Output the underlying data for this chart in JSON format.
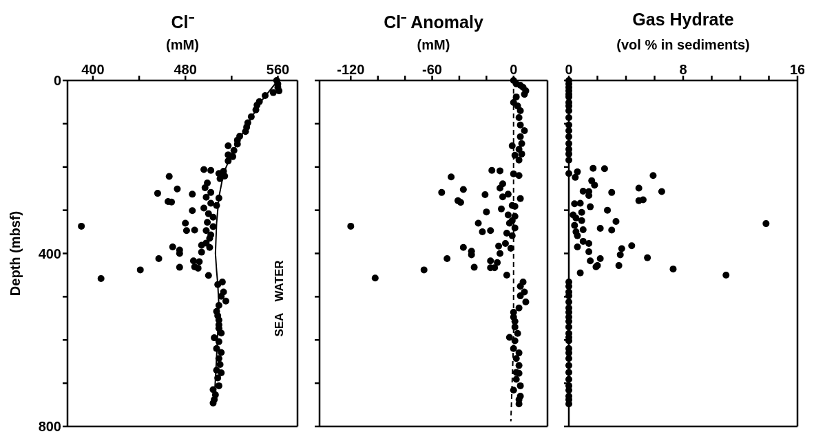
{
  "chart_data": [
    {
      "type": "scatter",
      "title": "Cl⁻",
      "xlabel": "(mM)",
      "ylabel": "Depth (mbsf)",
      "xlim": [
        378,
        577
      ],
      "xticks": [
        400,
        {
          "value": 440,
          "label": null
        },
        480,
        {
          "value": 520,
          "label": null
        },
        560
      ],
      "ylim": [
        800,
        0
      ],
      "yticks": [
        0,
        {
          "value": 100,
          "label": null
        },
        {
          "value": 200,
          "label": null
        },
        {
          "value": 300,
          "label": null
        },
        400,
        {
          "value": 500,
          "label": null
        },
        {
          "value": 600,
          "label": null
        },
        {
          "value": 700,
          "label": null
        },
        800
      ],
      "annotations": [
        "SEA WATER"
      ],
      "series": [
        {
          "color": "#000000",
          "marker": "circle",
          "x": [
            559,
            560,
            560,
            561,
            556,
            549,
            544,
            542,
            541,
            537,
            534,
            533,
            532,
            527,
            525,
            525,
            517,
            522,
            517,
            521,
            517,
            513,
            509,
            514,
            510,
            509,
            496,
            502,
            466,
            499,
            497,
            502,
            498,
            456,
            473,
            486,
            465,
            468,
            502,
            496,
            507,
            486,
            500,
            504,
            499,
            504,
            480,
            481,
            488,
            498,
            502,
            501,
            390,
            494,
            498,
            501,
            469,
            475,
            475,
            494,
            457,
            441,
            407,
            475,
            487,
            492,
            488,
            491,
            500,
            512,
            508,
            513,
            511,
            515,
            509,
            507,
            508,
            509,
            509,
            509,
            511,
            505,
            509,
            507,
            511,
            509,
            510,
            507,
            511,
            508,
            509,
            504,
            506,
            505,
            504
          ],
          "values": [
            0,
            8,
            16,
            24,
            28,
            35,
            49,
            57,
            68,
            84,
            98,
            108,
            118,
            129,
            138,
            147,
            151,
            162,
            172,
            176,
            186,
            210,
            215,
            221,
            227,
            272,
            206,
            208,
            222,
            237,
            248,
            259,
            270,
            261,
            251,
            263,
            280,
            281,
            284,
            295,
            289,
            301,
            308,
            316,
            328,
            338,
            330,
            347,
            346,
            347,
            357,
            365,
            337,
            381,
            376,
            386,
            385,
            392,
            400,
            397,
            412,
            438,
            458,
            432,
            417,
            419,
            431,
            434,
            451,
            466,
            472,
            489,
            499,
            510,
            520,
            534,
            544,
            554,
            565,
            573,
            584,
            595,
            604,
            620,
            629,
            643,
            657,
            670,
            676,
            688,
            706,
            715,
            727,
            738,
            746
          ]
        },
        {
          "type": "line",
          "color": "#000000",
          "marker": "none",
          "line_style": "solid",
          "x": [
            560,
            545,
            532,
            520,
            513,
            509,
            507,
            506,
            507,
            508,
            509,
            507,
            505
          ],
          "values": [
            0,
            50,
            110,
            170,
            215,
            270,
            330,
            400,
            440,
            470,
            520,
            640,
            740
          ]
        }
      ]
    },
    {
      "type": "scatter",
      "title": "Cl⁻ Anomaly",
      "xlabel": "(mM)",
      "tick_labels": "x",
      "xlim": [
        -143,
        25
      ],
      "xticks": [
        -120,
        {
          "value": -100,
          "label": null
        },
        {
          "value": -80,
          "label": null
        },
        -60,
        {
          "value": -40,
          "label": null
        },
        {
          "value": -20,
          "label": null
        },
        0
      ],
      "ylim": [
        800,
        0
      ],
      "yticks": [
        0,
        {
          "value": 100,
          "label": null
        },
        {
          "value": 200,
          "label": null
        },
        {
          "value": 300,
          "label": null
        },
        400,
        {
          "value": 500,
          "label": null
        },
        {
          "value": 600,
          "label": null
        },
        {
          "value": 700,
          "label": null
        },
        800
      ],
      "series": [
        {
          "color": "#000000",
          "marker": "circle",
          "x": [
            0,
            2,
            5,
            7,
            9,
            8,
            2,
            0,
            3,
            5,
            4,
            5,
            8,
            5,
            6,
            -1,
            4,
            6,
            1,
            4,
            -16,
            -10,
            0,
            4,
            -46,
            -8,
            -10,
            -37,
            -53,
            -21,
            -8,
            -4,
            5,
            -41,
            -39,
            -1,
            1,
            -20,
            -9,
            -4,
            1,
            -1,
            -3,
            -120,
            -26,
            -23,
            -17,
            1,
            -5,
            -1,
            -6,
            -11,
            -2,
            -37,
            -31,
            -10,
            -31,
            -49,
            -66,
            -102,
            -29,
            -17,
            -12,
            -17,
            -14,
            -5,
            7,
            5,
            8,
            5,
            9,
            4,
            0,
            0,
            1,
            1,
            3,
            -3,
            1,
            0,
            4,
            2,
            4,
            2,
            4,
            2,
            5,
            0,
            5,
            4,
            4
          ],
          "values": [
            0,
            8,
            11,
            16,
            24,
            32,
            38,
            51,
            59,
            70,
            86,
            103,
            116,
            130,
            146,
            151,
            159,
            170,
            173,
            184,
            208,
            209,
            216,
            220,
            223,
            239,
            249,
            252,
            259,
            264,
            269,
            263,
            273,
            278,
            282,
            289,
            291,
            304,
            297,
            311,
            314,
            324,
            330,
            337,
            330,
            350,
            347,
            341,
            353,
            359,
            377,
            383,
            388,
            386,
            395,
            400,
            403,
            412,
            438,
            457,
            432,
            417,
            421,
            433,
            433,
            450,
            466,
            476,
            489,
            498,
            512,
            526,
            536,
            547,
            557,
            570,
            585,
            594,
            602,
            620,
            630,
            643,
            659,
            675,
            677,
            691,
            706,
            716,
            730,
            738,
            748
          ]
        },
        {
          "type": "line",
          "color": "#000000",
          "marker": "none",
          "line_style": "dashed",
          "x": [
            0,
            0,
            -2
          ],
          "values": [
            0,
            600,
            788
          ]
        }
      ]
    },
    {
      "type": "scatter",
      "title": "Gas Hydrate",
      "xlabel": "(vol % in sediments)",
      "tick_labels": "x",
      "xlim": [
        0,
        16
      ],
      "xticks": [
        0,
        {
          "value": 2,
          "label": null
        },
        {
          "value": 4,
          "label": null
        },
        {
          "value": 6,
          "label": null
        },
        8,
        {
          "value": 10,
          "label": null
        },
        {
          "value": 12,
          "label": null
        },
        {
          "value": 14,
          "label": null
        },
        16
      ],
      "ylim": [
        800,
        0
      ],
      "yticks": [
        0,
        {
          "value": 100,
          "label": null
        },
        {
          "value": 200,
          "label": null
        },
        {
          "value": 300,
          "label": null
        },
        400,
        {
          "value": 500,
          "label": null
        },
        {
          "value": 600,
          "label": null
        },
        {
          "value": 700,
          "label": null
        },
        800
      ],
      "series": [
        {
          "color": "#000000",
          "marker": "circle",
          "x": [
            0,
            0,
            0,
            0,
            0,
            0,
            0,
            0,
            0,
            0,
            0,
            0,
            0,
            0,
            0,
            0,
            0,
            0,
            0,
            0,
            0,
            0,
            0,
            0,
            0,
            0,
            0,
            0,
            0,
            0,
            0,
            0,
            0,
            0,
            0,
            0,
            0,
            0,
            0,
            0,
            0,
            1.7,
            2.5,
            0.6,
            0,
            0.45,
            5.9,
            1.6,
            1.8,
            4.9,
            6.5,
            1.0,
            1.4,
            1.4,
            3.0,
            4.9,
            5.2,
            0.4,
            0.8,
            1.5,
            2.7,
            0.9,
            0.3,
            0.5,
            0.9,
            3.3,
            13.8,
            0.4,
            2.2,
            1.0,
            3.0,
            0.5,
            0.6,
            1.0,
            1.4,
            4.4,
            0.6,
            3.7,
            1.4,
            3.6,
            5.5,
            1.5,
            2.2,
            1.9,
            2.0,
            3.5,
            7.3,
            11.0,
            0.8
          ],
          "values": [
            0,
            8,
            16,
            24,
            32,
            38,
            51,
            59,
            70,
            86,
            103,
            116,
            130,
            146,
            159,
            170,
            184,
            466,
            476,
            489,
            498,
            512,
            526,
            536,
            547,
            557,
            570,
            585,
            594,
            602,
            620,
            630,
            643,
            659,
            675,
            691,
            706,
            716,
            730,
            738,
            748,
            203,
            204,
            211,
            215,
            224,
            220,
            232,
            242,
            249,
            257,
            256,
            257,
            266,
            259,
            278,
            276,
            285,
            284,
            292,
            300,
            305,
            311,
            318,
            324,
            326,
            331,
            335,
            342,
            345,
            346,
            350,
            359,
            372,
            377,
            382,
            385,
            389,
            396,
            403,
            410,
            417,
            412,
            431,
            428,
            428,
            436,
            450,
            445
          ]
        }
      ]
    }
  ]
}
